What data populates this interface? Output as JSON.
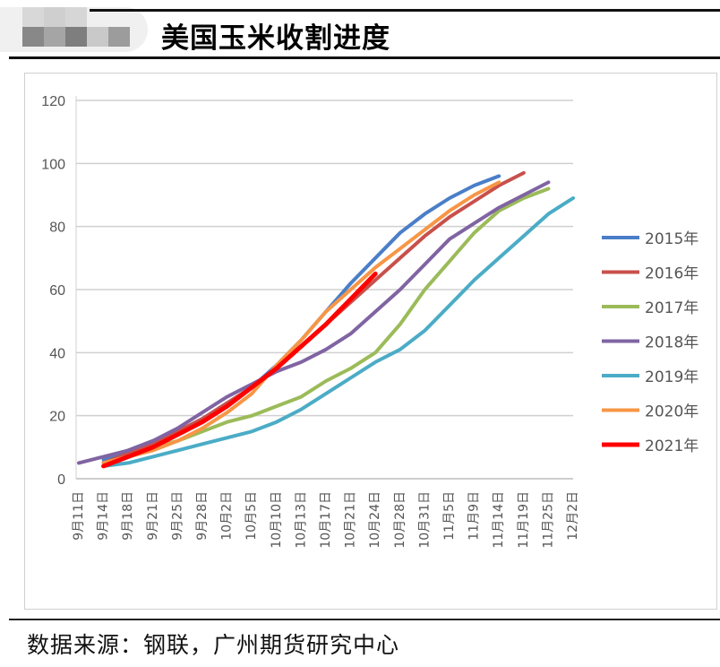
{
  "header": {
    "title": "美国玉米收割进度"
  },
  "footer": {
    "source": "数据来源：钢联，广州期货研究中心"
  },
  "chart_data": {
    "type": "line",
    "title": "",
    "xlabel": "",
    "ylabel": "",
    "ylim": [
      0,
      120
    ],
    "yticks": [
      0,
      20,
      40,
      60,
      80,
      100,
      120
    ],
    "grid": true,
    "legend_position": "right",
    "categories": [
      "9月11日",
      "9月14日",
      "9月18日",
      "9月21日",
      "9月25日",
      "9月28日",
      "10月2日",
      "10月5日",
      "10月10日",
      "10月13日",
      "10月17日",
      "10月21日",
      "10月24日",
      "10月28日",
      "10月31日",
      "11月5日",
      "11月9日",
      "11月14日",
      "11月19日",
      "11月25日",
      "12月2日"
    ],
    "series": [
      {
        "name": "2015年",
        "color": "#4a7ec8",
        "values": [
          null,
          6,
          9,
          12,
          15,
          19,
          24,
          29,
          36,
          44,
          53,
          62,
          70,
          78,
          84,
          89,
          93,
          96,
          null,
          null,
          null
        ]
      },
      {
        "name": "2016年",
        "color": "#c8504b",
        "values": [
          null,
          5,
          8,
          11,
          15,
          19,
          24,
          29,
          35,
          42,
          49,
          56,
          63,
          70,
          77,
          83,
          88,
          93,
          97,
          null,
          null
        ]
      },
      {
        "name": "2017年",
        "color": "#9bbb59",
        "values": [
          null,
          5,
          7,
          10,
          12,
          15,
          18,
          20,
          23,
          26,
          31,
          35,
          40,
          49,
          60,
          69,
          78,
          85,
          89,
          92,
          null
        ]
      },
      {
        "name": "2018年",
        "color": "#8064a2",
        "values": [
          5,
          7,
          9,
          12,
          16,
          21,
          26,
          30,
          34,
          37,
          41,
          46,
          53,
          60,
          68,
          76,
          81,
          86,
          90,
          94,
          null
        ]
      },
      {
        "name": "2019年",
        "color": "#4bacc6",
        "values": [
          null,
          4,
          5,
          7,
          9,
          11,
          13,
          15,
          18,
          22,
          27,
          32,
          37,
          41,
          47,
          55,
          63,
          70,
          77,
          84,
          89
        ]
      },
      {
        "name": "2020年",
        "color": "#f79646",
        "values": [
          null,
          5,
          7,
          9,
          12,
          16,
          21,
          27,
          36,
          44,
          53,
          60,
          67,
          73,
          79,
          85,
          90,
          94,
          null,
          null,
          null
        ]
      },
      {
        "name": "2021年",
        "color": "#ff0000",
        "values": [
          null,
          4,
          7,
          10,
          14,
          18,
          23,
          29,
          35,
          42,
          49,
          57,
          65,
          null,
          null,
          null,
          null,
          null,
          null,
          null,
          null
        ]
      }
    ]
  }
}
